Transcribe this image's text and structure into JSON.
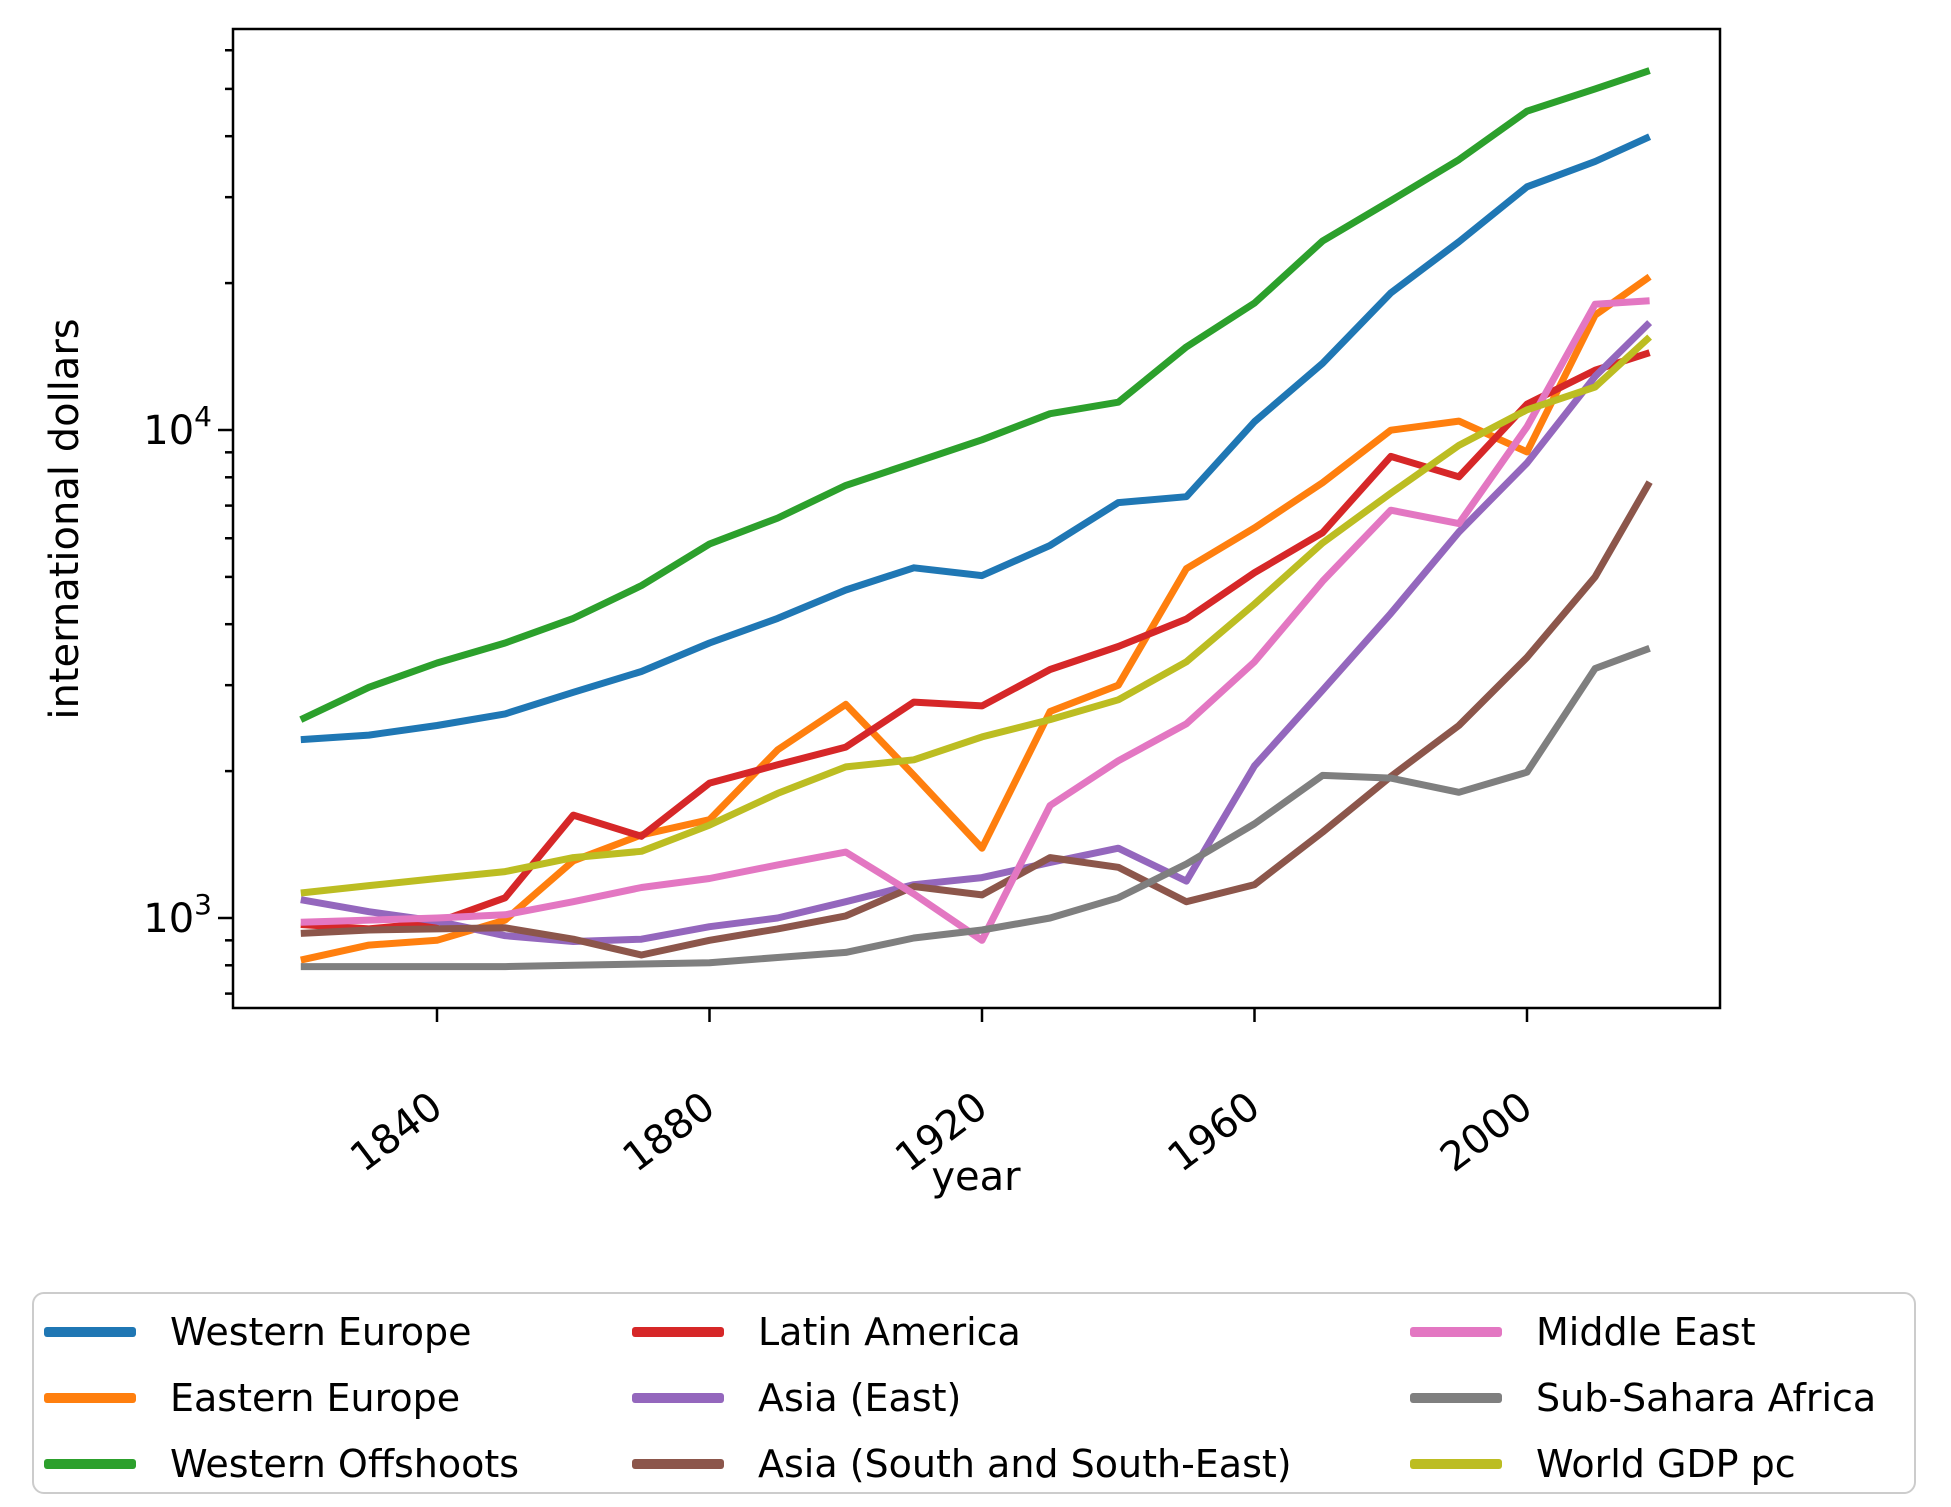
{
  "chart_data": {
    "type": "line",
    "xlabel": "year",
    "ylabel": "international dollars",
    "yscale": "log",
    "grid": false,
    "x": [
      1820,
      1830,
      1840,
      1850,
      1860,
      1870,
      1880,
      1890,
      1900,
      1910,
      1920,
      1930,
      1940,
      1950,
      1960,
      1970,
      1980,
      1990,
      2000,
      2010,
      2018
    ],
    "xticks": [
      1840,
      1880,
      1920,
      1960,
      2000
    ],
    "xtick_labels": [
      "1840",
      "1880",
      "1920",
      "1960",
      "2000"
    ],
    "ytick_major": [
      {
        "value": 1000,
        "base": "10",
        "exp": "3"
      },
      {
        "value": 10000,
        "base": "10",
        "exp": "4"
      }
    ],
    "ytick_minor": [
      700,
      800,
      900,
      2000,
      3000,
      4000,
      5000,
      6000,
      7000,
      8000,
      9000,
      20000,
      30000,
      40000,
      50000,
      60000
    ],
    "ylim": [
      655,
      66000
    ],
    "xlim": [
      1810,
      2028.3
    ],
    "series": [
      {
        "name": "Western Europe",
        "color": "#1f77b4",
        "values": [
          2320,
          2370,
          2480,
          2620,
          2900,
          3200,
          3660,
          4110,
          4700,
          5220,
          5030,
          5800,
          7100,
          7300,
          10400,
          13700,
          19100,
          24300,
          31500,
          35500,
          39900
        ]
      },
      {
        "name": "Eastern Europe",
        "color": "#ff7f0e",
        "values": [
          820,
          880,
          900,
          990,
          1310,
          1480,
          1590,
          2210,
          2740,
          1960,
          1390,
          2650,
          3000,
          5200,
          6300,
          7800,
          9990,
          10430,
          9020,
          17200,
          20600
        ]
      },
      {
        "name": "Western Offshoots",
        "color": "#2ca02c",
        "values": [
          2550,
          2970,
          3330,
          3660,
          4110,
          4800,
          5840,
          6600,
          7700,
          8570,
          9550,
          10800,
          11400,
          14800,
          18200,
          24400,
          29500,
          35800,
          45000,
          50000,
          54500
        ]
      },
      {
        "name": "Latin America",
        "color": "#d62728",
        "values": [
          970,
          950,
          980,
          1100,
          1625,
          1470,
          1890,
          2060,
          2240,
          2770,
          2720,
          3230,
          3600,
          4100,
          5100,
          6160,
          8830,
          8020,
          11300,
          13260,
          14400
        ]
      },
      {
        "name": "Asia (East)",
        "color": "#9467bd",
        "values": [
          1090,
          1030,
          985,
          920,
          895,
          905,
          960,
          1000,
          1080,
          1170,
          1210,
          1300,
          1390,
          1190,
          2050,
          2930,
          4210,
          6180,
          8560,
          12880,
          16600
        ]
      },
      {
        "name": "Asia (South and South-East)",
        "color": "#8c564b",
        "values": [
          930,
          945,
          950,
          955,
          905,
          840,
          900,
          950,
          1010,
          1160,
          1115,
          1330,
          1270,
          1080,
          1170,
          1500,
          1950,
          2480,
          3420,
          5000,
          7820
        ]
      },
      {
        "name": "Middle East",
        "color": "#e377c2",
        "values": [
          980,
          990,
          1000,
          1015,
          1080,
          1155,
          1205,
          1285,
          1365,
          1120,
          900,
          1700,
          2100,
          2500,
          3350,
          4900,
          6850,
          6430,
          10150,
          18100,
          18400
        ]
      },
      {
        "name": "Sub-Sahara Africa",
        "color": "#7f7f7f",
        "values": [
          795,
          795,
          795,
          795,
          800,
          805,
          810,
          830,
          850,
          910,
          945,
          1000,
          1100,
          1290,
          1560,
          1960,
          1935,
          1810,
          1990,
          3245,
          3570
        ]
      },
      {
        "name": "World GDP pc",
        "color": "#bcbd22",
        "values": [
          1125,
          1165,
          1205,
          1245,
          1330,
          1370,
          1550,
          1800,
          2040,
          2110,
          2350,
          2550,
          2800,
          3350,
          4400,
          5870,
          7420,
          9300,
          11000,
          12250,
          15500
        ]
      }
    ],
    "legend_columns": [
      [
        "Western Europe",
        "Eastern Europe",
        "Western Offshoots"
      ],
      [
        "Latin America",
        "Asia (East)",
        "Asia (South and South-East)"
      ],
      [
        "Middle East",
        "Sub-Sahara Africa",
        "World GDP pc"
      ]
    ],
    "legend_position": "bottom"
  }
}
